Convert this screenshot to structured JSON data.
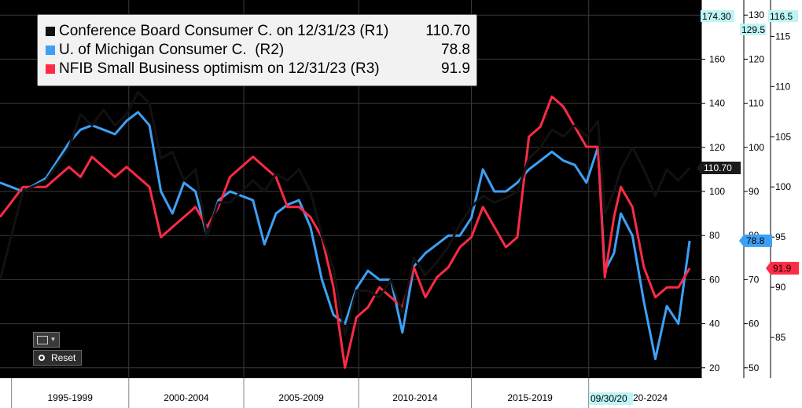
{
  "chart_data": {
    "type": "line",
    "x_axis": {
      "labels": [
        "1995-1999",
        "2000-2004",
        "2005-2009",
        "2010-2014",
        "2015-2019",
        "2020-2024"
      ],
      "date_label": "09/30/20"
    },
    "legend": {
      "items": [
        {
          "label": "Conference Board Consumer C. on 12/31/23 (R1)",
          "value": "110.70",
          "color": "#111111"
        },
        {
          "label": "U. of Michigan Consumer C.  (R2)",
          "value": "78.8",
          "color": "#3ea0f5"
        },
        {
          "label": "NFIB Small Business optimism on 12/31/23 (R3)",
          "value": "91.9",
          "color": "#ff2a45"
        }
      ]
    },
    "axes": {
      "r1": {
        "ticks": [
          "20",
          "40",
          "60",
          "80",
          "100",
          "120",
          "140",
          "160",
          "180"
        ],
        "range": [
          16,
          184
        ],
        "max_label": "174.30"
      },
      "r2": {
        "ticks": [
          "50",
          "60",
          "70",
          "80",
          "90",
          "100",
          "110",
          "120",
          "130"
        ],
        "range": [
          48,
          132
        ],
        "max_label": "129.5"
      },
      "r3": {
        "ticks": [
          "85",
          "90",
          "95",
          "100",
          "105",
          "110",
          "115"
        ],
        "range": [
          81.1,
          118
        ],
        "max_label": "116.5"
      }
    },
    "last_value_tags": {
      "r1": "110.70",
      "r2": "78.8",
      "r3": "91.9"
    },
    "series": [
      {
        "name": "Conference Board Consumer C.",
        "color": "#111111",
        "axis": "r1",
        "x": [
          1994.0,
          1995.0,
          1996.0,
          1997.0,
          1997.5,
          1998.0,
          1998.5,
          1999.0,
          1999.5,
          2000.0,
          2000.5,
          2001.0,
          2001.5,
          2002.0,
          2002.5,
          2003.0,
          2003.5,
          2004.0,
          2005.0,
          2005.5,
          2006.0,
          2006.5,
          2007.0,
          2007.5,
          2008.0,
          2008.5,
          2009.0,
          2009.5,
          2010.0,
          2010.5,
          2011.0,
          2011.5,
          2012.0,
          2012.5,
          2013.0,
          2013.5,
          2014.0,
          2014.5,
          2015.0,
          2015.5,
          2016.0,
          2016.5,
          2017.0,
          2017.5,
          2018.0,
          2018.5,
          2019.0,
          2019.5,
          2020.0,
          2020.3,
          2020.7,
          2021.0,
          2021.5,
          2022.0,
          2022.5,
          2023.0,
          2023.5,
          2023.99
        ],
        "y": [
          60,
          100,
          105,
          120,
          135,
          130,
          137,
          130,
          135,
          145,
          140,
          115,
          118,
          105,
          110,
          80,
          95,
          95,
          105,
          100,
          108,
          105,
          110,
          100,
          80,
          65,
          35,
          55,
          55,
          52,
          60,
          45,
          70,
          62,
          68,
          75,
          85,
          93,
          98,
          95,
          97,
          100,
          115,
          120,
          128,
          125,
          130,
          125,
          132,
          90,
          100,
          110,
          120,
          110,
          98,
          110,
          105,
          110.7
        ]
      },
      {
        "name": "U. of Michigan Consumer C.",
        "color": "#3ea0f5",
        "axis": "r2",
        "x": [
          1994.0,
          1995.0,
          1996.0,
          1997.0,
          1997.5,
          1998.0,
          1998.5,
          1999.0,
          1999.5,
          2000.0,
          2000.5,
          2001.0,
          2001.5,
          2002.0,
          2002.5,
          2003.0,
          2003.5,
          2004.0,
          2005.0,
          2005.5,
          2006.0,
          2006.5,
          2007.0,
          2007.5,
          2008.0,
          2008.5,
          2009.0,
          2009.5,
          2010.0,
          2010.5,
          2011.0,
          2011.5,
          2012.0,
          2012.5,
          2013.0,
          2013.5,
          2014.0,
          2014.5,
          2015.0,
          2015.5,
          2016.0,
          2016.5,
          2017.0,
          2017.5,
          2018.0,
          2018.5,
          2019.0,
          2019.5,
          2020.0,
          2020.3,
          2020.7,
          2021.0,
          2021.5,
          2022.0,
          2022.5,
          2023.0,
          2023.5,
          2023.99
        ],
        "y": [
          92,
          90,
          93,
          101,
          104,
          105,
          104,
          103,
          106,
          108,
          105,
          90,
          85,
          92,
          90,
          80,
          88,
          90,
          88,
          78,
          85,
          87,
          88,
          82,
          70,
          62,
          60,
          68,
          72,
          70,
          70,
          58,
          73,
          76,
          78,
          80,
          80,
          84,
          95,
          90,
          90,
          92,
          95,
          97,
          99,
          97,
          96,
          92,
          100,
          72,
          76,
          85,
          80,
          65,
          52,
          64,
          60,
          78.8
        ]
      },
      {
        "name": "NFIB Small Business optimism",
        "color": "#ff2a45",
        "axis": "r3",
        "x": [
          1994.0,
          1995.0,
          1996.0,
          1997.0,
          1997.5,
          1998.0,
          1998.5,
          1999.0,
          1999.5,
          2000.0,
          2000.5,
          2001.0,
          2001.5,
          2002.0,
          2002.5,
          2003.0,
          2003.5,
          2004.0,
          2005.0,
          2005.5,
          2006.0,
          2006.5,
          2007.0,
          2007.5,
          2008.0,
          2008.5,
          2009.0,
          2009.5,
          2010.0,
          2010.5,
          2011.0,
          2011.5,
          2012.0,
          2012.5,
          2013.0,
          2013.5,
          2014.0,
          2014.5,
          2015.0,
          2015.5,
          2016.0,
          2016.5,
          2017.0,
          2017.5,
          2018.0,
          2018.5,
          2019.0,
          2019.5,
          2020.0,
          2020.3,
          2020.7,
          2021.0,
          2021.5,
          2022.0,
          2022.5,
          2023.0,
          2023.5,
          2023.99
        ],
        "y": [
          97,
          100,
          100,
          102,
          101,
          103,
          102,
          101,
          102,
          101,
          100,
          95,
          96,
          97,
          98,
          96,
          98,
          101,
          103,
          102,
          101,
          98,
          98,
          97,
          95,
          90,
          82,
          87,
          88,
          90,
          89,
          88,
          92,
          89,
          91,
          92,
          94,
          95,
          98,
          96,
          94,
          95,
          105,
          106,
          109,
          108,
          106,
          104,
          104,
          91,
          97,
          100,
          98,
          92,
          89,
          90,
          90,
          91.9
        ]
      }
    ]
  }
}
